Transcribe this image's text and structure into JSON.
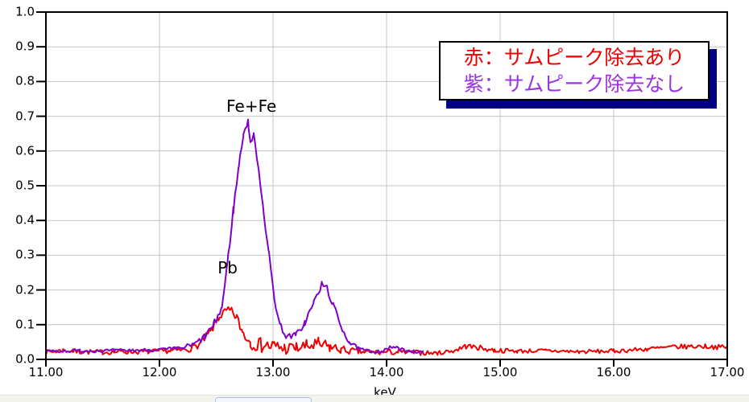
{
  "chart_data": {
    "type": "line",
    "title": "",
    "xlabel": "keV",
    "ylabel": "",
    "xlim": [
      11.0,
      17.0
    ],
    "ylim": [
      0.0,
      1.0
    ],
    "grid": true,
    "grid_color": "#c4c4c4",
    "axis_color": "#000000",
    "x_ticks": [
      11,
      12,
      13,
      14,
      15,
      16,
      17
    ],
    "x_tick_labels": [
      "11.00",
      "12.00",
      "13.00",
      "14.00",
      "15.00",
      "16.00",
      "17.00"
    ],
    "y_ticks": [
      0.0,
      0.1,
      0.2,
      0.3,
      0.4,
      0.5,
      0.6,
      0.7,
      0.8,
      0.9,
      1.0
    ],
    "y_tick_labels": [
      "0.0",
      "0.1",
      "0.2",
      "0.3",
      "0.4",
      "0.5",
      "0.6",
      "0.7",
      "0.8",
      "0.9",
      "1.0"
    ],
    "legend_position": "top-right",
    "noise_seed": 7,
    "sample_step": 0.015,
    "annotations": [
      {
        "text": "Fe+Fe",
        "x": 12.81,
        "y": 0.73
      },
      {
        "text": "Pb",
        "x": 12.6,
        "y": 0.265
      }
    ],
    "series": [
      {
        "name": "サムピーク除去あり",
        "color": "#ee0000",
        "anchors": [
          [
            11.0,
            0.02,
            0.007
          ],
          [
            11.15,
            0.026,
            0.007
          ],
          [
            11.3,
            0.022,
            0.007
          ],
          [
            11.5,
            0.021,
            0.007
          ],
          [
            11.7,
            0.022,
            0.007
          ],
          [
            11.9,
            0.022,
            0.007
          ],
          [
            12.1,
            0.025,
            0.007
          ],
          [
            12.25,
            0.028,
            0.008
          ],
          [
            12.35,
            0.042,
            0.01
          ],
          [
            12.45,
            0.08,
            0.012
          ],
          [
            12.52,
            0.12,
            0.012
          ],
          [
            12.58,
            0.138,
            0.012
          ],
          [
            12.63,
            0.14,
            0.012
          ],
          [
            12.68,
            0.12,
            0.014
          ],
          [
            12.73,
            0.08,
            0.016
          ],
          [
            12.8,
            0.05,
            0.02
          ],
          [
            12.9,
            0.04,
            0.022
          ],
          [
            13.0,
            0.038,
            0.022
          ],
          [
            13.1,
            0.032,
            0.02
          ],
          [
            13.2,
            0.032,
            0.018
          ],
          [
            13.3,
            0.038,
            0.02
          ],
          [
            13.4,
            0.042,
            0.022
          ],
          [
            13.5,
            0.035,
            0.018
          ],
          [
            13.6,
            0.028,
            0.012
          ],
          [
            13.75,
            0.022,
            0.009
          ],
          [
            13.9,
            0.02,
            0.008
          ],
          [
            14.1,
            0.021,
            0.008
          ],
          [
            14.3,
            0.019,
            0.007
          ],
          [
            14.45,
            0.018,
            0.006
          ],
          [
            14.6,
            0.026,
            0.007
          ],
          [
            14.7,
            0.038,
            0.008
          ],
          [
            14.8,
            0.034,
            0.008
          ],
          [
            14.95,
            0.026,
            0.007
          ],
          [
            15.15,
            0.024,
            0.006
          ],
          [
            15.4,
            0.025,
            0.006
          ],
          [
            15.7,
            0.022,
            0.006
          ],
          [
            16.0,
            0.024,
            0.006
          ],
          [
            16.3,
            0.03,
            0.007
          ],
          [
            16.55,
            0.036,
            0.007
          ],
          [
            16.8,
            0.038,
            0.007
          ],
          [
            17.0,
            0.034,
            0.007
          ]
        ]
      },
      {
        "name": "サムピーク除去なし",
        "color": "#8000c8",
        "anchors": [
          [
            11.0,
            0.024,
            0.005
          ],
          [
            11.3,
            0.025,
            0.005
          ],
          [
            11.6,
            0.025,
            0.005
          ],
          [
            11.9,
            0.027,
            0.005
          ],
          [
            12.15,
            0.03,
            0.006
          ],
          [
            12.3,
            0.042,
            0.008
          ],
          [
            12.4,
            0.065,
            0.01
          ],
          [
            12.48,
            0.1,
            0.012
          ],
          [
            12.55,
            0.15,
            0.012
          ],
          [
            12.6,
            0.28,
            0.012
          ],
          [
            12.65,
            0.43,
            0.012
          ],
          [
            12.7,
            0.56,
            0.01
          ],
          [
            12.74,
            0.65,
            0.008
          ],
          [
            12.78,
            0.685,
            0.006
          ],
          [
            12.8,
            0.625,
            0.008
          ],
          [
            12.83,
            0.645,
            0.008
          ],
          [
            12.86,
            0.58,
            0.01
          ],
          [
            12.91,
            0.45,
            0.012
          ],
          [
            12.96,
            0.31,
            0.012
          ],
          [
            13.01,
            0.18,
            0.012
          ],
          [
            13.06,
            0.1,
            0.01
          ],
          [
            13.12,
            0.065,
            0.008
          ],
          [
            13.2,
            0.07,
            0.008
          ],
          [
            13.28,
            0.105,
            0.01
          ],
          [
            13.36,
            0.165,
            0.01
          ],
          [
            13.43,
            0.215,
            0.01
          ],
          [
            13.47,
            0.21,
            0.01
          ],
          [
            13.53,
            0.155,
            0.01
          ],
          [
            13.6,
            0.095,
            0.009
          ],
          [
            13.67,
            0.05,
            0.008
          ],
          [
            13.75,
            0.03,
            0.006
          ],
          [
            13.85,
            0.023,
            0.005
          ],
          [
            13.97,
            0.024,
            0.005
          ],
          [
            14.05,
            0.036,
            0.006
          ],
          [
            14.13,
            0.028,
            0.005
          ],
          [
            14.22,
            0.024,
            0.005
          ],
          [
            14.32,
            0.02,
            0.004
          ]
        ]
      }
    ]
  },
  "legend": {
    "lines": [
      {
        "label": "赤：サムピーク除去あり",
        "color": "#ee0000"
      },
      {
        "label": "紫：サムピーク除去なし",
        "color": "#9a33e0"
      }
    ],
    "shadow_color": "#000080"
  }
}
